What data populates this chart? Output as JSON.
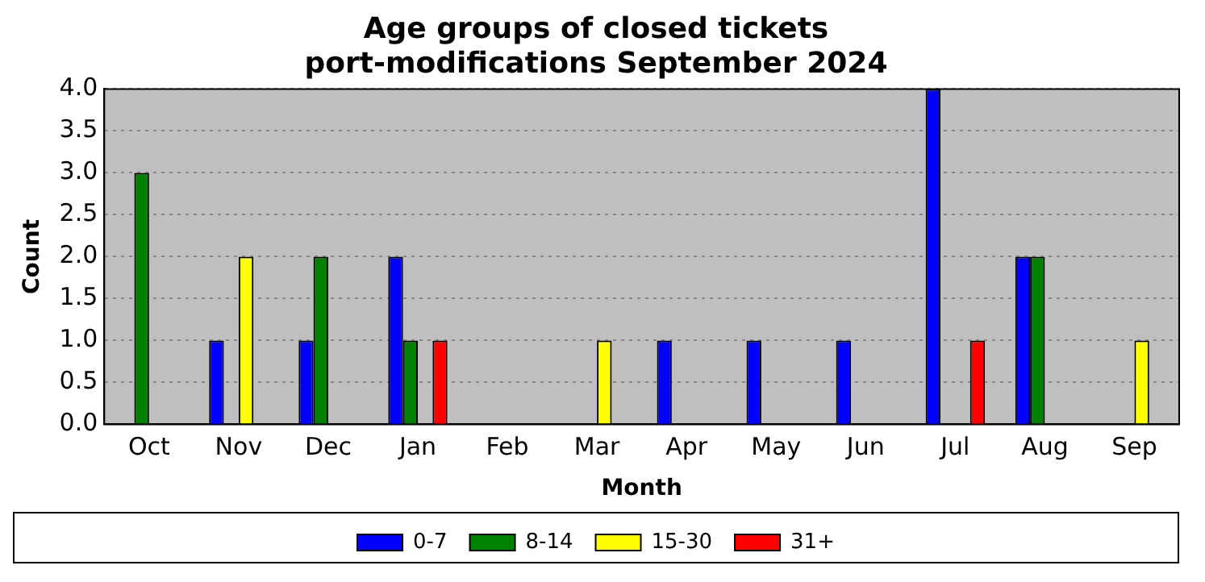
{
  "chart_data": {
    "type": "bar",
    "title": "Age groups of closed tickets",
    "subtitle": "port-modifications September 2024",
    "xlabel": "Month",
    "ylabel": "Count",
    "categories": [
      "Oct",
      "Nov",
      "Dec",
      "Jan",
      "Feb",
      "Mar",
      "Apr",
      "May",
      "Jun",
      "Jul",
      "Aug",
      "Sep"
    ],
    "series": [
      {
        "name": "0-7",
        "color": "#0000ff",
        "values": [
          0,
          1,
          1,
          2,
          0,
          0,
          1,
          1,
          1,
          4,
          2,
          0
        ]
      },
      {
        "name": "8-14",
        "color": "#008000",
        "values": [
          3,
          0,
          2,
          1,
          0,
          0,
          0,
          0,
          0,
          0,
          2,
          0
        ]
      },
      {
        "name": "15-30",
        "color": "#ffff00",
        "values": [
          0,
          2,
          0,
          0,
          0,
          1,
          0,
          0,
          0,
          0,
          0,
          1
        ]
      },
      {
        "name": "31+",
        "color": "#ff0000",
        "values": [
          0,
          0,
          0,
          1,
          0,
          0,
          0,
          0,
          0,
          1,
          0,
          0
        ]
      }
    ],
    "ylim": [
      0,
      4
    ],
    "yticks": [
      {
        "value": 0,
        "label": "0.0"
      },
      {
        "value": 0.5,
        "label": "0.5"
      },
      {
        "value": 1,
        "label": "1.0"
      },
      {
        "value": 1.5,
        "label": "1.5"
      },
      {
        "value": 2,
        "label": "2.0"
      },
      {
        "value": 2.5,
        "label": "2.5"
      },
      {
        "value": 3,
        "label": "3.0"
      },
      {
        "value": 3.5,
        "label": "3.5"
      },
      {
        "value": 4,
        "label": "4.0"
      }
    ],
    "grid": "y",
    "legend": "bottom"
  }
}
